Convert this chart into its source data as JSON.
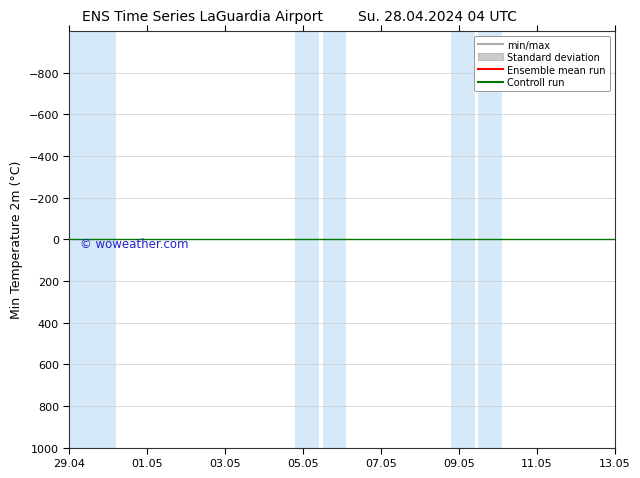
{
  "title_left": "ENS Time Series LaGuardia Airport",
  "title_right": "Su. 28.04.2024 04 UTC",
  "ylabel": "Min Temperature 2m (°C)",
  "ylim_bottom": 1000,
  "ylim_top": -1000,
  "yticks": [
    -800,
    -600,
    -400,
    -200,
    0,
    200,
    400,
    600,
    800,
    1000
  ],
  "x_labels": [
    "29.04",
    "01.05",
    "03.05",
    "05.05",
    "07.05",
    "09.05",
    "11.05",
    "13.05"
  ],
  "x_tick_positions": [
    0,
    2,
    4,
    6,
    8,
    10,
    12,
    14
  ],
  "shaded_color": "#d6e9f8",
  "shaded_bands": [
    [
      0.0,
      1.2
    ],
    [
      5.8,
      6.4
    ],
    [
      6.5,
      7.1
    ],
    [
      9.8,
      10.4
    ],
    [
      10.5,
      11.1
    ]
  ],
  "line_y": 0.0,
  "green_line_color": "#007700",
  "background_color": "#ffffff",
  "plot_bg_color": "#ffffff",
  "watermark": "© woweather.com",
  "watermark_color": "#2222cc",
  "legend_labels": [
    "min/max",
    "Standard deviation",
    "Ensemble mean run",
    "Controll run"
  ],
  "legend_line_color": "#aaaaaa",
  "legend_fill_color": "#cccccc",
  "legend_red_color": "#ff0000",
  "legend_green_color": "#007700",
  "x_total_days": 14,
  "title_fontsize": 10,
  "ylabel_fontsize": 9,
  "tick_fontsize": 8,
  "legend_fontsize": 7
}
